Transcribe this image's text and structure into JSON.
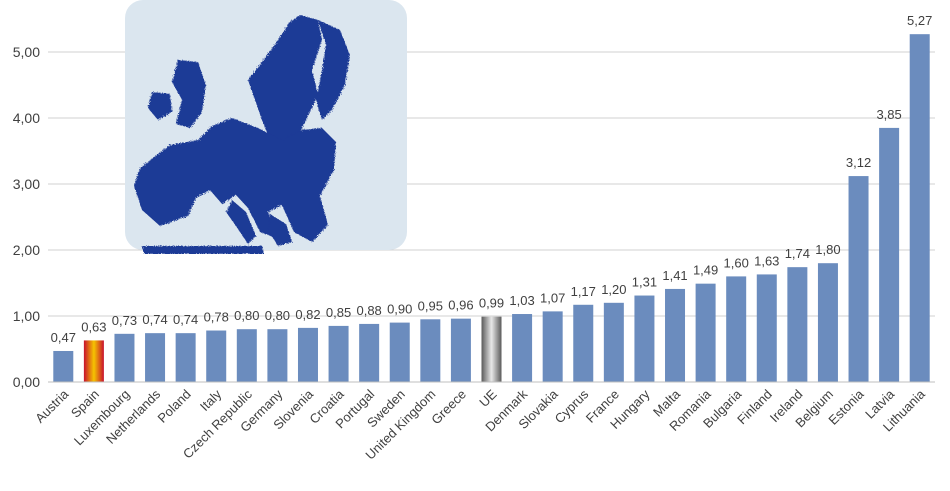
{
  "chart_data": {
    "type": "bar",
    "title": "",
    "xlabel": "",
    "ylabel": "",
    "ylim": [
      0,
      5.5
    ],
    "yticks": [
      "0,00",
      "1,00",
      "2,00",
      "3,00",
      "4,00",
      "5,00"
    ],
    "grid": true,
    "legend": "none",
    "categories": [
      "Austria",
      "Spain",
      "Luxembourg",
      "Netherlands",
      "Poland",
      "Italy",
      "Czech Republic",
      "Germany",
      "Slovenia",
      "Croatia",
      "Portugal",
      "Sweden",
      "United Kingdom",
      "Greece",
      "UE",
      "Denmark",
      "Slovakia",
      "Cyprus",
      "France",
      "Hungary",
      "Malta",
      "Romania",
      "Bulgaria",
      "Finland",
      "Ireland",
      "Belgium",
      "Estonia",
      "Latvia",
      "Lithuania"
    ],
    "values": [
      0.47,
      0.63,
      0.73,
      0.74,
      0.74,
      0.78,
      0.8,
      0.8,
      0.82,
      0.85,
      0.88,
      0.9,
      0.95,
      0.96,
      0.99,
      1.03,
      1.07,
      1.17,
      1.2,
      1.31,
      1.41,
      1.49,
      1.6,
      1.63,
      1.74,
      1.8,
      3.12,
      3.85,
      5.27
    ],
    "value_labels": [
      "0,47",
      "0,63",
      "0,73",
      "0,74",
      "0,74",
      "0,78",
      "0,80",
      "0,80",
      "0,82",
      "0,85",
      "0,88",
      "0,90",
      "0,95",
      "0,96",
      "0,99",
      "1,03",
      "1,07",
      "1,17",
      "1,20",
      "1,31",
      "1,41",
      "1,49",
      "1,60",
      "1,63",
      "1,74",
      "1,80",
      "3,12",
      "3,85",
      "5,27"
    ],
    "colors": {
      "default_bar": "#6b8cbe",
      "spain_bar": [
        "#c8102e",
        "#f5c400",
        "#c8102e"
      ],
      "ue_bar": [
        "#5a5a5a",
        "#e8e8e8",
        "#5a5a5a"
      ],
      "gridline": "#d0d0d0",
      "axis": "#bfbfbf",
      "map_water": "#dbe6ef",
      "map_land": "#1f3a96"
    },
    "decoration": "europe-map-icon"
  }
}
